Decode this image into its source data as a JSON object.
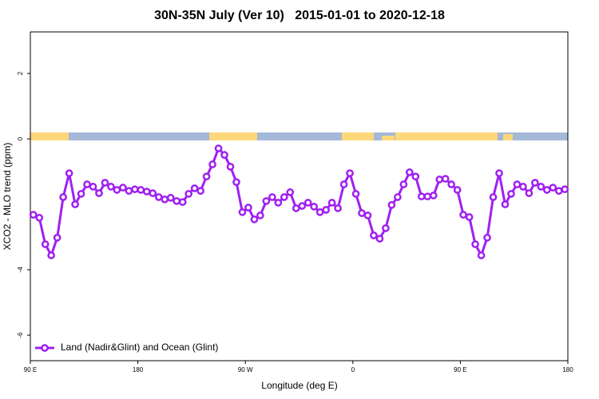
{
  "chart_data": {
    "type": "line",
    "title": "30N-35N July (Ver 10)   2015-01-01 to 2020-12-18",
    "xlabel": "Longitude (deg E)",
    "ylabel": "XCO2 - MLO trend (ppm)",
    "xlim": [
      90,
      540
    ],
    "ylim": [
      -6.78,
      3.27
    ],
    "xticks": [
      {
        "value": 90,
        "label": "90 E"
      },
      180,
      {
        "value": 270,
        "label": "90 W"
      },
      {
        "value": 360,
        "label": "0"
      },
      {
        "value": 450,
        "label": "90 E"
      },
      {
        "value": 540,
        "label": "180"
      }
    ],
    "yticks": [
      -6,
      -4,
      0,
      2
    ],
    "legend": "bottom-left",
    "x": [
      92.5,
      97.5,
      102.5,
      107.5,
      112.5,
      117.5,
      122.5,
      127.5,
      132.5,
      137.5,
      142.5,
      147.5,
      152.5,
      157.5,
      162.5,
      167.5,
      172.5,
      177.5,
      182.5,
      187.5,
      192.5,
      197.5,
      202.5,
      207.5,
      212.5,
      217.5,
      222.5,
      227.5,
      232.5,
      237.5,
      242.5,
      247.5,
      252.5,
      257.5,
      262.5,
      267.5,
      272.5,
      277.5,
      282.5,
      287.5,
      292.5,
      297.5,
      302.5,
      307.5,
      312.5,
      317.5,
      322.5,
      327.5,
      332.5,
      337.5,
      342.5,
      347.5,
      352.5,
      357.5,
      362.5,
      367.5,
      372.5,
      377.5,
      382.5,
      387.5,
      392.5,
      397.5,
      402.5,
      407.5,
      412.5,
      417.5,
      422.5,
      427.5,
      432.5,
      437.5,
      442.5,
      447.5,
      452.5,
      457.5,
      462.5,
      467.5,
      472.5,
      477.5,
      482.5,
      487.5,
      492.5,
      497.5,
      502.5,
      507.5,
      512.5,
      517.5,
      522.5,
      527.5,
      532.5,
      537.5
    ],
    "series": [
      {
        "name": "Land (Nadir&Glint) and Ocean (Glint)",
        "color": "#a020f0",
        "values": [
          -2.32,
          -2.41,
          -3.22,
          -3.56,
          -3.02,
          -1.78,
          -1.05,
          -2.0,
          -1.68,
          -1.39,
          -1.46,
          -1.66,
          -1.34,
          -1.46,
          -1.56,
          -1.49,
          -1.59,
          -1.54,
          -1.56,
          -1.61,
          -1.66,
          -1.78,
          -1.85,
          -1.8,
          -1.9,
          -1.93,
          -1.68,
          -1.51,
          -1.59,
          -1.15,
          -0.78,
          -0.29,
          -0.49,
          -0.85,
          -1.32,
          -2.24,
          -2.1,
          -2.46,
          -2.34,
          -1.9,
          -1.78,
          -1.95,
          -1.78,
          -1.63,
          -2.12,
          -2.05,
          -1.95,
          -2.07,
          -2.24,
          -2.17,
          -1.95,
          -2.12,
          -1.39,
          -1.05,
          -1.68,
          -2.27,
          -2.34,
          -2.95,
          -3.05,
          -2.73,
          -2.02,
          -1.78,
          -1.39,
          -1.02,
          -1.15,
          -1.76,
          -1.76,
          -1.73,
          -1.24,
          -1.22,
          -1.39,
          -1.56,
          -2.32,
          -2.39,
          -3.22,
          -3.56,
          -3.02,
          -1.78,
          -1.05,
          -2.0,
          -1.68,
          -1.39,
          -1.46,
          -1.66,
          -1.34,
          -1.46,
          -1.56,
          -1.49,
          -1.59,
          -1.54
        ]
      }
    ]
  }
}
